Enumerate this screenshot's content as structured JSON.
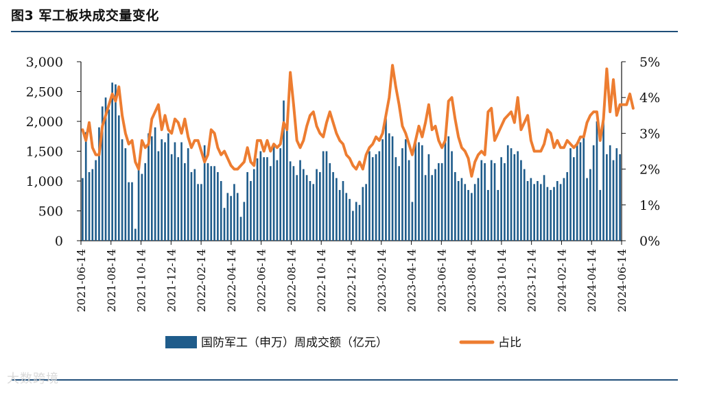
{
  "header": {
    "title": "图3 军工板块成交量变化"
  },
  "watermark": "大数跨境",
  "chart_data": {
    "type": "bar+line",
    "title": "军工板块成交量变化",
    "series": [
      {
        "name": "国防军工（申万）周成交额（亿元）",
        "type": "bar",
        "axis": "left",
        "color": "#1f5c8b",
        "values": [
          1050,
          1820,
          1150,
          1200,
          1350,
          1900,
          2250,
          2400,
          2200,
          2650,
          2620,
          2100,
          1700,
          1550,
          980,
          980,
          200,
          1200,
          1120,
          1300,
          1800,
          1750,
          1900,
          1500,
          1700,
          1650,
          1800,
          1450,
          1650,
          1400,
          1650,
          1300,
          1550,
          1150,
          1200,
          950,
          950,
          1600,
          1300,
          1250,
          1250,
          1150,
          1000,
          550,
          800,
          750,
          950,
          800,
          400,
          650,
          1150,
          1000,
          1200,
          1380,
          1500,
          1400,
          1400,
          1250,
          1600,
          1350,
          1550,
          2350,
          1850,
          1330,
          1250,
          1100,
          1350,
          1200,
          1100,
          1000,
          950,
          1200,
          1150,
          1500,
          1500,
          1300,
          1150,
          1050,
          850,
          1000,
          800,
          700,
          500,
          650,
          600,
          900,
          950,
          1500,
          1400,
          1450,
          1500,
          1700,
          2050,
          1800,
          1750,
          1400,
          1250,
          1550,
          1700,
          1350,
          650,
          1700,
          1650,
          1600,
          1100,
          1450,
          1100,
          1200,
          1300,
          1300,
          1650,
          1750,
          1500,
          1150,
          1000,
          1050,
          950,
          850,
          800,
          950,
          1050,
          1350,
          1300,
          850,
          1350,
          1300,
          850,
          1400,
          1300,
          1600,
          1550,
          1450,
          1500,
          1350,
          1200,
          1000,
          1050,
          950,
          1000,
          950,
          1100,
          900,
          850,
          900,
          1000,
          950,
          1050,
          1150,
          1550,
          1400,
          1650,
          1650,
          1750,
          1050,
          1200,
          1600,
          2000,
          850,
          2100,
          1450,
          1600,
          1350,
          1550,
          1450
        ]
      },
      {
        "name": "占比",
        "type": "line",
        "axis": "right",
        "unit": "%",
        "color": "#ed7d31",
        "values": [
          3.1,
          2.8,
          3.3,
          2.6,
          2.4,
          2.4,
          3.2,
          3.5,
          3.8,
          4.1,
          3.9,
          4.3,
          3.5,
          3.0,
          2.7,
          2.8,
          2.2,
          2.0,
          2.8,
          2.6,
          2.7,
          3.4,
          3.6,
          3.8,
          3.1,
          3.5,
          3.1,
          3.0,
          3.4,
          3.3,
          3.0,
          3.4,
          2.9,
          2.6,
          2.8,
          2.8,
          2.5,
          2.2,
          2.4,
          3.1,
          3.0,
          2.6,
          2.4,
          2.5,
          2.3,
          2.1,
          2.0,
          2.0,
          2.1,
          2.2,
          2.6,
          2.2,
          2.1,
          2.8,
          2.8,
          2.5,
          2.8,
          2.5,
          2.7,
          2.6,
          2.7,
          3.3,
          3.1,
          4.7,
          3.8,
          2.8,
          2.6,
          2.8,
          3.2,
          3.5,
          3.6,
          3.2,
          3.0,
          2.9,
          3.3,
          3.6,
          3.3,
          3.0,
          2.8,
          2.7,
          2.4,
          2.3,
          2.1,
          2.0,
          2.2,
          2.0,
          2.4,
          2.6,
          2.7,
          2.9,
          2.8,
          3.0,
          3.5,
          4.0,
          4.9,
          4.3,
          3.8,
          3.2,
          3.0,
          2.7,
          2.4,
          2.8,
          3.2,
          2.9,
          3.3,
          3.8,
          3.1,
          3.2,
          2.8,
          2.6,
          2.8,
          3.9,
          4.0,
          3.4,
          2.9,
          2.6,
          2.5,
          2.3,
          1.8,
          2.2,
          2.4,
          2.5,
          2.4,
          3.6,
          3.7,
          2.8,
          3.0,
          3.2,
          3.4,
          3.5,
          3.6,
          3.3,
          4.0,
          3.1,
          3.3,
          3.5,
          2.8,
          2.5,
          2.5,
          2.5,
          2.7,
          3.1,
          3.0,
          2.6,
          2.8,
          2.6,
          2.6,
          2.8,
          2.7,
          2.6,
          2.7,
          2.9,
          2.9,
          3.3,
          3.5,
          3.6,
          3.6,
          2.8,
          3.4,
          4.8,
          3.6,
          4.5,
          3.5,
          3.8,
          3.8,
          3.8,
          4.1,
          3.7
        ]
      }
    ],
    "x_tick_labels": [
      "2021-06-14",
      "2021-08-14",
      "2021-10-14",
      "2021-12-14",
      "2022-02-14",
      "2022-04-14",
      "2022-06-14",
      "2022-08-14",
      "2022-10-14",
      "2022-12-14",
      "2023-02-14",
      "2023-04-14",
      "2023-06-14",
      "2023-08-14",
      "2023-10-14",
      "2023-12-14",
      "2024-02-14",
      "2024-04-14",
      "2024-06-14"
    ],
    "y_left": {
      "range": [
        0,
        3000
      ],
      "tick_labels": [
        "0",
        "500",
        "1,000",
        "1,500",
        "2,000",
        "2,500",
        "3,000"
      ]
    },
    "y_right": {
      "range": [
        0,
        5
      ],
      "tick_labels": [
        "0%",
        "1%",
        "2%",
        "3%",
        "4%",
        "5%"
      ]
    },
    "legend": {
      "position": "bottom",
      "items": [
        "国防军工（申万）周成交额（亿元）",
        "占比"
      ]
    }
  }
}
